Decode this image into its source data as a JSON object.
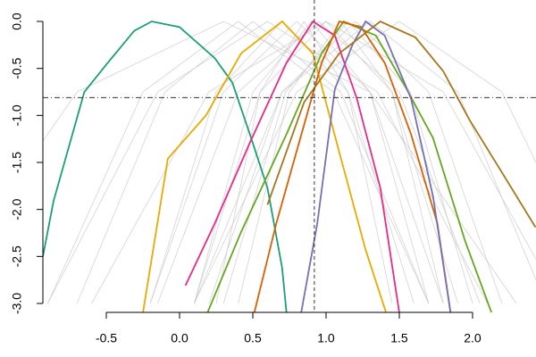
{
  "chart_data": {
    "type": "line",
    "xlim": [
      -0.933,
      2.433
    ],
    "ylim": [
      -3.095,
      0.228
    ],
    "xticks": [
      -0.5,
      {
        "value": 0,
        "label": "0.0"
      },
      0.5,
      {
        "value": 1,
        "label": "1.0"
      },
      1.5,
      {
        "value": 2,
        "label": "2.0"
      }
    ],
    "yticks": [
      {
        "value": 0,
        "label": "0.0"
      },
      -0.5,
      {
        "value": -1,
        "label": "-1.0"
      },
      -1.5,
      {
        "value": -2,
        "label": "-2.0"
      },
      -2.5,
      {
        "value": -3,
        "label": "-3.0"
      }
    ],
    "vline": 0.92,
    "hline": -0.81,
    "series": [
      {
        "color": "#c8c8c8",
        "x": [
          -0.7,
          -0.1,
          0.5,
          1.1,
          1.7
        ],
        "values": [
          -3,
          -0.75,
          0,
          -0.75,
          -3
        ]
      },
      {
        "color": "#c8c8c8",
        "x": [
          -0.2,
          0.25,
          0.7,
          1.15,
          1.6
        ],
        "values": [
          -3,
          -0.75,
          0,
          -0.75,
          -3
        ]
      },
      {
        "color": "#c8c8c8",
        "x": [
          -0.2,
          0.3,
          0.8,
          1.3,
          1.8
        ],
        "values": [
          -3,
          -0.75,
          0,
          -0.75,
          -3
        ]
      },
      {
        "color": "#c8c8c8",
        "x": [
          0.1,
          0.5,
          0.9,
          1.3,
          1.7
        ],
        "values": [
          -3,
          -0.75,
          0,
          -0.75,
          -3
        ]
      },
      {
        "color": "#c8c8c8",
        "x": [
          0.1,
          0.55,
          1.0,
          1.45,
          1.9
        ],
        "values": [
          -3,
          -0.75,
          0,
          -0.75,
          -3
        ]
      },
      {
        "color": "#c8c8c8",
        "x": [
          0.4,
          0.75,
          1.1,
          1.45,
          1.8
        ],
        "values": [
          -3,
          -0.75,
          0,
          -0.75,
          -3
        ]
      },
      {
        "color": "#c8c8c8",
        "x": [
          0.2,
          0.7,
          1.2,
          1.7,
          2.2
        ],
        "values": [
          -3,
          -0.75,
          0,
          -0.75,
          -3
        ]
      },
      {
        "color": "#c8c8c8",
        "x": [
          -0.9,
          -0.15,
          0.6,
          1.35,
          2.1
        ],
        "values": [
          -3,
          -0.75,
          0,
          -0.75,
          -3
        ]
      },
      {
        "color": "#c8c8c8",
        "x": [
          0.1,
          0.7,
          1.3,
          1.9,
          2.5
        ],
        "values": [
          -3,
          -0.75,
          0,
          -0.75,
          -3
        ]
      },
      {
        "color": "#c8c8c8",
        "x": [
          -0.9,
          -0.25,
          0.4,
          1.05,
          1.7
        ],
        "values": [
          -3,
          -0.75,
          0,
          -0.75,
          -3
        ]
      },
      {
        "color": "#c8c8c8",
        "x": [
          -0.6,
          0.2,
          1.0,
          1.8,
          2.6
        ],
        "values": [
          -3,
          -0.75,
          0,
          -0.75,
          -3
        ]
      },
      {
        "color": "#c8c8c8",
        "x": [
          0.25,
          0.55,
          0.85,
          1.15,
          1.45
        ],
        "values": [
          -3,
          -0.75,
          0,
          -0.75,
          -3
        ]
      },
      {
        "color": "#c8c8c8",
        "x": [
          0.3,
          0.725,
          1.15,
          1.575,
          2.0
        ],
        "values": [
          -3,
          -0.75,
          0,
          -0.75,
          -3
        ]
      },
      {
        "color": "#c8c8c8",
        "x": [
          -1.7,
          -0.7,
          0.3,
          1.3,
          2.3
        ],
        "values": [
          -3,
          -0.75,
          0,
          -0.75,
          -3
        ]
      },
      {
        "color": "#c8c8c8",
        "x": [
          0.1,
          0.8,
          1.5,
          2.2,
          2.9
        ],
        "values": [
          -3,
          -0.75,
          0,
          -0.75,
          -3
        ]
      },
      {
        "color": "#c8c8c8",
        "x": [
          -0.15,
          0.4,
          0.95,
          1.5,
          2.05
        ],
        "values": [
          -3,
          -0.75,
          0,
          -0.75,
          -3
        ]
      },
      {
        "color": "#1b9e77",
        "x": [
          -0.933,
          -0.86,
          -0.65,
          -0.49,
          -0.31,
          -0.19,
          0,
          0.24,
          0.36,
          0.48,
          0.6,
          0.7,
          0.73
        ],
        "values": [
          -2.5,
          -1.91,
          -0.75,
          -0.44,
          -0.1,
          0,
          -0.06,
          -0.39,
          -0.65,
          -1.2,
          -1.77,
          -2.62,
          -3.1
        ]
      },
      {
        "color": "#e6ab02",
        "x": [
          -0.25,
          -0.08,
          0.18,
          0.42,
          0.7,
          0.91,
          1.09,
          1.27,
          1.41
        ],
        "values": [
          -3.1,
          -1.46,
          -1.0,
          -0.34,
          0,
          -0.34,
          -1.39,
          -2.43,
          -3.1
        ]
      },
      {
        "color": "#e7298a",
        "x": [
          0.04,
          0.24,
          0.48,
          0.73,
          0.91,
          1.06,
          1.21,
          1.37,
          1.5
        ],
        "values": [
          -2.81,
          -2.15,
          -1.29,
          -0.44,
          0,
          -0.15,
          -0.82,
          -1.77,
          -3.1
        ]
      },
      {
        "color": "#66a61e",
        "x": [
          0.19,
          0.42,
          0.73,
          0.97,
          1.12,
          1.34,
          1.55,
          1.73,
          1.95,
          2.13
        ],
        "values": [
          -3.1,
          -2.24,
          -1.2,
          -0.34,
          0,
          -0.15,
          -0.72,
          -1.24,
          -2.34,
          -3.1
        ]
      },
      {
        "color": "#d95f02",
        "x": [
          0.51,
          0.66,
          0.85,
          0.97,
          1.09,
          1.24,
          1.4,
          1.58,
          1.76,
          1.85
        ],
        "values": [
          -3.1,
          -2.15,
          -1.1,
          -0.44,
          0,
          -0.06,
          -0.44,
          -1.2,
          -2.15,
          -3.1
        ]
      },
      {
        "color": "#7570b3",
        "x": [
          0.83,
          0.94,
          1.06,
          1.18,
          1.27,
          1.4,
          1.58,
          1.73,
          1.85
        ],
        "values": [
          -3.1,
          -2.15,
          -0.72,
          -0.25,
          0,
          -0.15,
          -0.82,
          -1.86,
          -3.1
        ]
      },
      {
        "color": "#a6761d",
        "x": [
          0.6,
          0.85,
          1.09,
          1.37,
          1.61,
          1.8,
          1.98,
          2.19,
          2.43
        ],
        "values": [
          -1.95,
          -0.86,
          -0.34,
          0,
          -0.17,
          -0.53,
          -1.05,
          -1.58,
          -2.19
        ]
      }
    ]
  }
}
